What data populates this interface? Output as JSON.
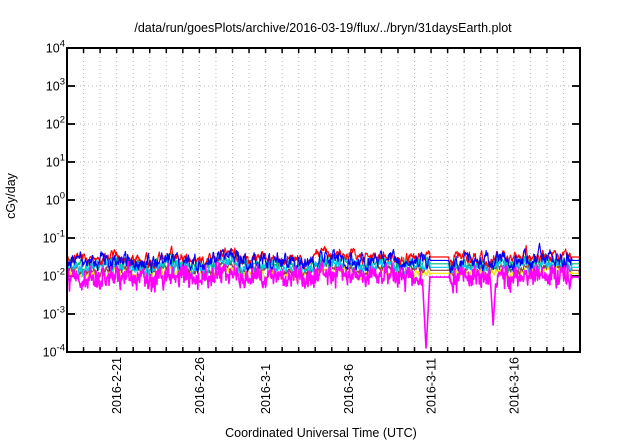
{
  "chart_data": {
    "type": "line",
    "title": "/data/run/goesPlots/archive/2016-03-19/flux/../bryn/31daysEarth.plot",
    "xlabel": "Coordinated Universal Time (UTC)",
    "ylabel": "cGy/day",
    "y_scale": "log10",
    "ylim_log10": [
      -4,
      4
    ],
    "y_tick_exponents": [
      4,
      3,
      2,
      1,
      0,
      -1,
      -2,
      -3,
      -4
    ],
    "x_start_date": "2016-2-18",
    "x_range_days": 31,
    "x_minor_tick_every_days": 1,
    "x_ticks": [
      {
        "label": "2016-2-21",
        "day": 3
      },
      {
        "label": "2016-2-26",
        "day": 8
      },
      {
        "label": "2016-3-1",
        "day": 12
      },
      {
        "label": "2016-3-6",
        "day": 17
      },
      {
        "label": "2016-3-11",
        "day": 22
      },
      {
        "label": "2016-3-16",
        "day": 27
      }
    ],
    "grid": {
      "vertical_every_day": true,
      "horizontal_every_decade": true,
      "style": "dotted",
      "color": "#b8b8b8"
    },
    "legend": "none",
    "frame": {
      "background": "#ffffff",
      "border_color": "#000000",
      "tick_color": "#000000"
    },
    "points_per_series": 1040,
    "z_draw_order": [
      "yellow",
      "brown",
      "green",
      "cyan",
      "red",
      "blue",
      "magenta"
    ],
    "series": [
      {
        "name": "red",
        "color": "#ff0000",
        "typical_cgy_per_day": 0.03,
        "band_log10": [
          -1.66,
          -1.35
        ],
        "gap_value_log10": -1.5,
        "base_log10": -1.52,
        "sigma": 0.115,
        "smooth": 0.7,
        "spike_prob": 0.012,
        "spike_amp": 0.22,
        "spike_dir": 1,
        "skew": 0,
        "width": 1.15,
        "seed": 101
      },
      {
        "name": "blue",
        "color": "#0000ff",
        "typical_cgy_per_day": 0.025,
        "band_log10": [
          -1.8,
          -1.38
        ],
        "gap_value_log10": -1.59,
        "base_log10": -1.6,
        "sigma": 0.15,
        "smooth": 0.66,
        "spike_prob": 0.015,
        "spike_amp": 0.28,
        "spike_dir": 1,
        "skew": 0,
        "width": 1.15,
        "seed": 202
      },
      {
        "name": "green",
        "color": "#00b878",
        "typical_cgy_per_day": 0.021,
        "band_log10": [
          -1.86,
          -1.52
        ],
        "gap_value_log10": -1.68,
        "base_log10": -1.68,
        "sigma": 0.11,
        "smooth": 0.68,
        "spike_prob": 0.01,
        "spike_amp": 0.16,
        "spike_dir": 1,
        "skew": 0,
        "width": 1.1,
        "seed": 303
      },
      {
        "name": "cyan",
        "color": "#00c8f0",
        "typical_cgy_per_day": 0.017,
        "band_log10": [
          -1.94,
          -1.6
        ],
        "gap_value_log10": -1.77,
        "base_log10": -1.76,
        "sigma": 0.11,
        "smooth": 0.68,
        "spike_prob": 0.01,
        "spike_amp": 0.15,
        "spike_dir": 1,
        "skew": 0,
        "width": 1.1,
        "seed": 404
      },
      {
        "name": "brown",
        "color": "#8b4040",
        "typical_cgy_per_day": 0.014,
        "band_log10": [
          -2.0,
          -1.7
        ],
        "gap_value_log10": -1.85,
        "base_log10": -1.84,
        "sigma": 0.09,
        "smooth": 0.7,
        "spike_prob": 0.008,
        "spike_amp": 0.12,
        "spike_dir": 1,
        "skew": 0,
        "width": 1.1,
        "seed": 505
      },
      {
        "name": "yellow",
        "color": "#f2e400",
        "typical_cgy_per_day": 0.012,
        "band_log10": [
          -2.08,
          -1.78
        ],
        "gap_value_log10": -1.93,
        "base_log10": -1.92,
        "sigma": 0.09,
        "smooth": 0.7,
        "spike_prob": 0.008,
        "spike_amp": 0.12,
        "spike_dir": 1,
        "skew": 0,
        "width": 1.1,
        "seed": 606
      },
      {
        "name": "magenta",
        "color": "#ff00ff",
        "typical_cgy_per_day": 0.009,
        "band_log10": [
          -2.65,
          -1.75
        ],
        "gap_value_log10": -2.03,
        "base_log10": -1.84,
        "sigma": 0.1,
        "smooth": 0.55,
        "spike_prob": 0.02,
        "spike_amp": 0.55,
        "spike_dir": -1,
        "skew": 0.4,
        "width": 1.6,
        "seed": 707
      }
    ],
    "flat_gap_segments_days": [
      [
        21.95,
        23.08
      ],
      [
        30.5,
        30.97
      ]
    ],
    "anomalies": [
      {
        "series": "magenta",
        "type": "dip",
        "day": 21.7,
        "value_log10": -3.97,
        "width_days": 0.25
      },
      {
        "series": "magenta",
        "type": "dip",
        "day": 25.75,
        "value_log10": -3.3,
        "width_days": 0.2
      },
      {
        "series": "blue",
        "type": "spike",
        "day": 28.55,
        "value_log10": -1.13,
        "width_days": 0.15
      },
      {
        "series": "red",
        "type": "spike",
        "day": 11.8,
        "value_log10": -1.33,
        "width_days": 0.1
      }
    ]
  }
}
